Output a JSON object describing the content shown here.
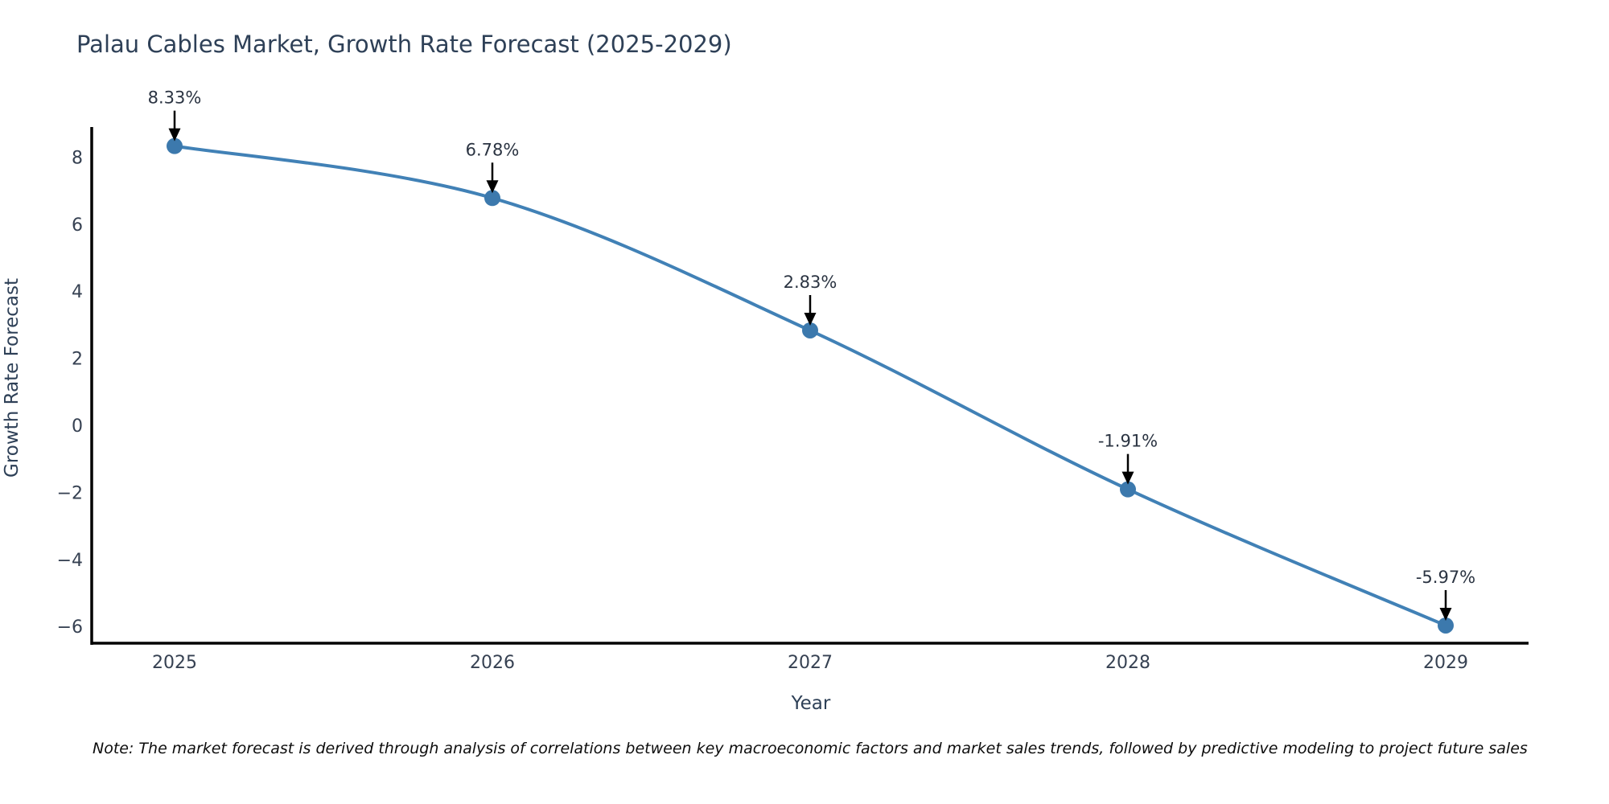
{
  "title": "Palau Cables Market, Growth Rate Forecast (2025-2029)",
  "note": "Note: The market forecast is derived through analysis of correlations between key macroeconomic factors and market sales trends, followed by predictive modeling to project future sales",
  "chart_data": {
    "type": "line",
    "title": "Palau Cables Market, Growth Rate Forecast (2025-2029)",
    "xlabel": "Year",
    "ylabel": "Growth Rate Forecast",
    "categories": [
      "2025",
      "2026",
      "2027",
      "2028",
      "2029"
    ],
    "x": [
      2025,
      2026,
      2027,
      2028,
      2029
    ],
    "values": [
      8.33,
      6.78,
      2.83,
      -1.91,
      -5.97
    ],
    "point_labels": [
      "8.33%",
      "6.78%",
      "2.83%",
      "-1.91%",
      "-5.97%"
    ],
    "ytick_values": [
      8,
      6,
      4,
      2,
      0,
      -2,
      -4,
      -6
    ],
    "ytick_labels": [
      "8",
      "6",
      "4",
      "2",
      "0",
      "−2",
      "−4",
      "−6"
    ],
    "ylim": [
      -6.5,
      8.85
    ],
    "grid": false,
    "legend": false,
    "line_shape": "spline",
    "line_color": "#4181b6",
    "marker_color": "#3c79ad",
    "axis_color": "#000000",
    "annotation_arrow_color": "#000000",
    "text_color": "#2e4057"
  }
}
